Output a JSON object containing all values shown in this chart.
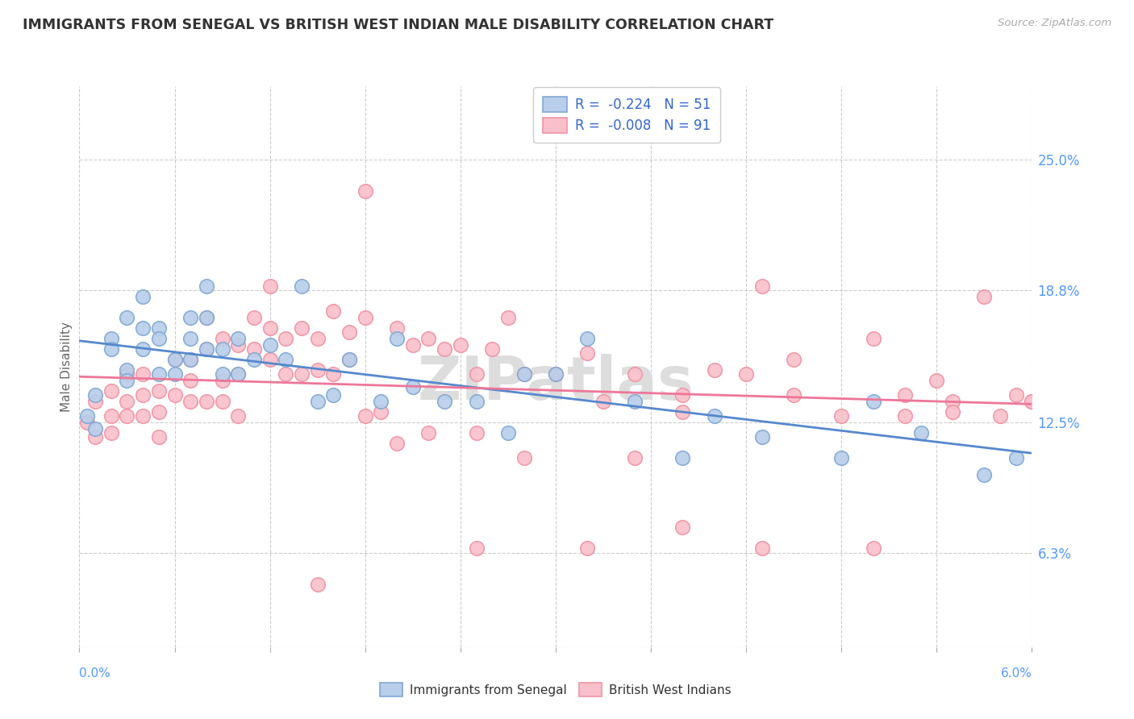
{
  "title": "IMMIGRANTS FROM SENEGAL VS BRITISH WEST INDIAN MALE DISABILITY CORRELATION CHART",
  "source": "Source: ZipAtlas.com",
  "ylabel": "Male Disability",
  "ytick_labels": [
    "25.0%",
    "18.8%",
    "12.5%",
    "6.3%"
  ],
  "ytick_values": [
    0.25,
    0.188,
    0.125,
    0.063
  ],
  "xmin": 0.0,
  "xmax": 0.06,
  "ymin": 0.018,
  "ymax": 0.285,
  "legend_blue_r": "-0.224",
  "legend_blue_n": "51",
  "legend_pink_r": "-0.008",
  "legend_pink_n": "91",
  "blue_scatter_face": "#B8CEEA",
  "blue_scatter_edge": "#7FA8D4",
  "pink_scatter_face": "#F9C0CB",
  "pink_scatter_edge": "#F093A3",
  "blue_line_color": "#5588CC",
  "pink_line_color": "#EE7799",
  "watermark": "ZIPatlas",
  "grid_color": "#CCCCCC",
  "senegal_x": [
    0.0005,
    0.001,
    0.001,
    0.002,
    0.002,
    0.003,
    0.003,
    0.003,
    0.004,
    0.004,
    0.004,
    0.005,
    0.005,
    0.005,
    0.006,
    0.006,
    0.007,
    0.007,
    0.007,
    0.008,
    0.008,
    0.008,
    0.009,
    0.009,
    0.01,
    0.01,
    0.011,
    0.012,
    0.013,
    0.014,
    0.015,
    0.016,
    0.017,
    0.019,
    0.02,
    0.021,
    0.023,
    0.025,
    0.027,
    0.028,
    0.03,
    0.032,
    0.035,
    0.038,
    0.04,
    0.043,
    0.048,
    0.05,
    0.053,
    0.057,
    0.059
  ],
  "senegal_y": [
    0.128,
    0.122,
    0.138,
    0.165,
    0.16,
    0.15,
    0.175,
    0.145,
    0.185,
    0.17,
    0.16,
    0.17,
    0.165,
    0.148,
    0.155,
    0.148,
    0.175,
    0.165,
    0.155,
    0.19,
    0.175,
    0.16,
    0.16,
    0.148,
    0.165,
    0.148,
    0.155,
    0.162,
    0.155,
    0.19,
    0.135,
    0.138,
    0.155,
    0.135,
    0.165,
    0.142,
    0.135,
    0.135,
    0.12,
    0.148,
    0.148,
    0.165,
    0.135,
    0.108,
    0.128,
    0.118,
    0.108,
    0.135,
    0.12,
    0.1,
    0.108
  ],
  "bwi_x": [
    0.0005,
    0.001,
    0.001,
    0.002,
    0.002,
    0.002,
    0.003,
    0.003,
    0.003,
    0.004,
    0.004,
    0.004,
    0.005,
    0.005,
    0.005,
    0.006,
    0.006,
    0.007,
    0.007,
    0.007,
    0.008,
    0.008,
    0.008,
    0.009,
    0.009,
    0.009,
    0.01,
    0.01,
    0.011,
    0.011,
    0.012,
    0.012,
    0.013,
    0.013,
    0.014,
    0.014,
    0.015,
    0.015,
    0.016,
    0.016,
    0.017,
    0.017,
    0.018,
    0.018,
    0.019,
    0.02,
    0.021,
    0.022,
    0.023,
    0.024,
    0.025,
    0.026,
    0.027,
    0.028,
    0.03,
    0.032,
    0.033,
    0.035,
    0.038,
    0.04,
    0.042,
    0.043,
    0.045,
    0.048,
    0.05,
    0.052,
    0.054,
    0.055,
    0.057,
    0.058,
    0.059,
    0.06,
    0.012,
    0.018,
    0.025,
    0.032,
    0.038,
    0.043,
    0.05,
    0.055,
    0.035,
    0.015,
    0.022,
    0.028,
    0.045,
    0.052,
    0.06,
    0.038,
    0.025,
    0.02,
    0.01
  ],
  "bwi_y": [
    0.125,
    0.118,
    0.135,
    0.128,
    0.14,
    0.12,
    0.135,
    0.148,
    0.128,
    0.138,
    0.128,
    0.148,
    0.14,
    0.13,
    0.118,
    0.155,
    0.138,
    0.155,
    0.145,
    0.135,
    0.175,
    0.16,
    0.135,
    0.165,
    0.145,
    0.135,
    0.162,
    0.148,
    0.175,
    0.16,
    0.155,
    0.17,
    0.165,
    0.148,
    0.17,
    0.148,
    0.165,
    0.15,
    0.178,
    0.148,
    0.168,
    0.155,
    0.175,
    0.235,
    0.13,
    0.17,
    0.162,
    0.165,
    0.16,
    0.162,
    0.148,
    0.16,
    0.175,
    0.148,
    0.148,
    0.158,
    0.135,
    0.148,
    0.138,
    0.15,
    0.148,
    0.19,
    0.138,
    0.128,
    0.165,
    0.138,
    0.145,
    0.135,
    0.185,
    0.128,
    0.138,
    0.135,
    0.19,
    0.128,
    0.065,
    0.065,
    0.075,
    0.065,
    0.065,
    0.13,
    0.108,
    0.048,
    0.12,
    0.108,
    0.155,
    0.128,
    0.135,
    0.13,
    0.12,
    0.115,
    0.128
  ]
}
